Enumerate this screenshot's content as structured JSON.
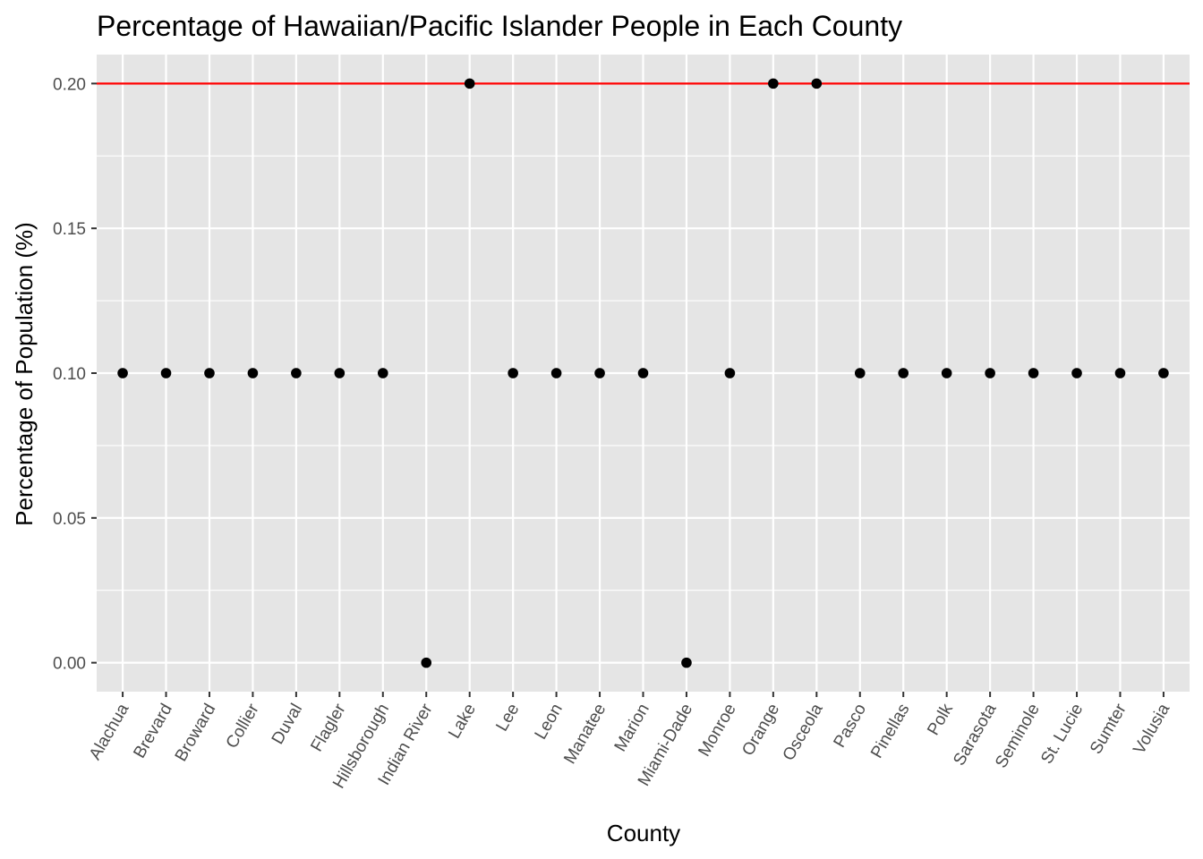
{
  "chart_data": {
    "type": "scatter",
    "title": "Percentage of Hawaiian/Pacific Islander People in Each County",
    "xlabel": "County",
    "ylabel": "Percentage of Population (%)",
    "categories": [
      "Alachua",
      "Brevard",
      "Broward",
      "Collier",
      "Duval",
      "Flagler",
      "Hillsborough",
      "Indian River",
      "Lake",
      "Lee",
      "Leon",
      "Manatee",
      "Marion",
      "Miami-Dade",
      "Monroe",
      "Orange",
      "Osceola",
      "Pasco",
      "Pinellas",
      "Polk",
      "Sarasota",
      "Seminole",
      "St. Lucie",
      "Sumter",
      "Volusia"
    ],
    "values": [
      0.1,
      0.1,
      0.1,
      0.1,
      0.1,
      0.1,
      0.1,
      0.0,
      0.2,
      0.1,
      0.1,
      0.1,
      0.1,
      0.0,
      0.1,
      0.2,
      0.2,
      0.1,
      0.1,
      0.1,
      0.1,
      0.1,
      0.1,
      0.1,
      0.1
    ],
    "ylim": [
      -0.01,
      0.21
    ],
    "yticks": [
      0.0,
      0.05,
      0.1,
      0.15,
      0.2
    ],
    "ytick_labels": [
      "0.00",
      "0.05",
      "0.10",
      "0.15",
      "0.20"
    ],
    "reference_line": {
      "y": 0.2,
      "color": "#ff0000"
    },
    "grid": true,
    "colors": {
      "panel_background": "#e5e5e5",
      "grid": "#ffffff",
      "point": "#000000",
      "tick": "#333333"
    }
  }
}
